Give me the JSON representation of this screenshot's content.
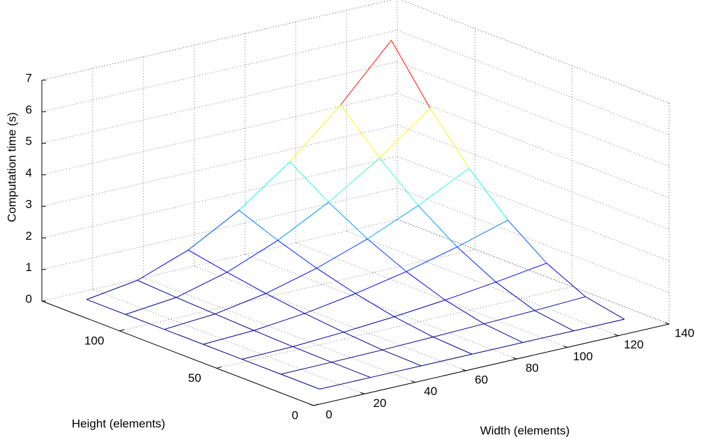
{
  "chart_data": {
    "type": "mesh",
    "xlabel": "Width (elements)",
    "ylabel": "Height (elements)",
    "zlabel": "Computation time (s)",
    "x": [
      10,
      30,
      50,
      70,
      90,
      110,
      130
    ],
    "y": [
      10,
      30,
      50,
      70,
      90,
      110,
      130
    ],
    "z": [
      [
        0.1,
        0.1,
        0.1,
        0.1,
        0.1,
        0.1,
        0.1
      ],
      [
        0.1,
        0.11,
        0.13,
        0.17,
        0.22,
        0.27,
        0.34
      ],
      [
        0.1,
        0.13,
        0.22,
        0.34,
        0.5,
        0.7,
        0.93
      ],
      [
        0.1,
        0.17,
        0.34,
        0.6,
        0.93,
        1.34,
        1.82
      ],
      [
        0.1,
        0.22,
        0.5,
        0.93,
        1.49,
        2.18,
        2.99
      ],
      [
        0.1,
        0.27,
        0.7,
        1.34,
        2.18,
        3.21,
        4.42
      ],
      [
        0.1,
        0.34,
        0.93,
        1.82,
        2.99,
        4.42,
        6.1
      ]
    ],
    "xlim": [
      0,
      140
    ],
    "ylim": [
      0,
      140
    ],
    "zlim": [
      0,
      7
    ],
    "xticks": [
      0,
      20,
      40,
      60,
      80,
      100,
      120,
      140
    ],
    "yticks": [
      0,
      50,
      100
    ],
    "zticks": [
      0,
      1,
      2,
      3,
      4,
      5,
      6,
      7
    ],
    "grid": true,
    "colormap": "jet"
  }
}
